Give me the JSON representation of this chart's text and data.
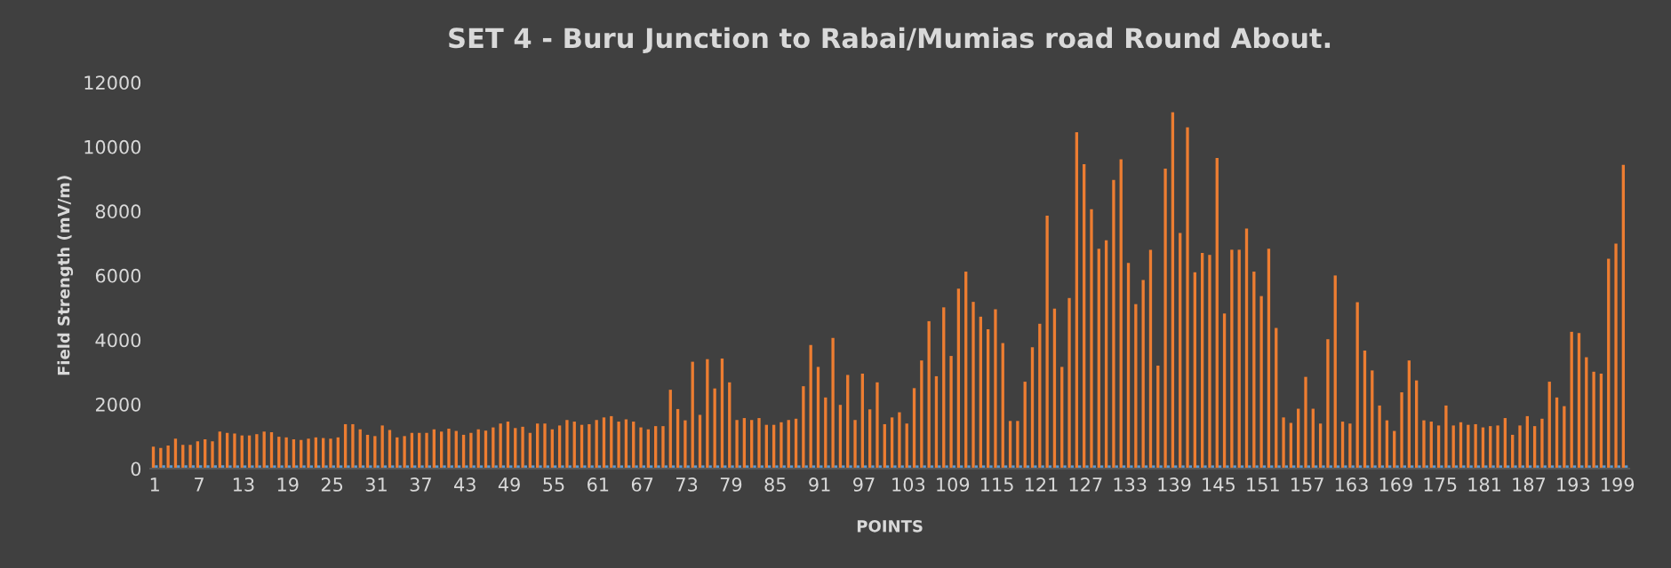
{
  "chart_data": {
    "type": "bar",
    "title": "SET 4 - Buru Junction to Rabai/Mumias road Round About.",
    "xlabel": "POINTS",
    "ylabel": "Field Strength (mV/m)",
    "categories": [
      "1",
      null,
      null,
      null,
      null,
      null,
      "7",
      null,
      null,
      null,
      null,
      null,
      "13",
      null,
      null,
      null,
      null,
      null,
      "19",
      null,
      null,
      null,
      null,
      null,
      "25",
      null,
      null,
      null,
      null,
      null,
      "31",
      null,
      null,
      null,
      null,
      null,
      "37",
      null,
      null,
      null,
      null,
      null,
      "43",
      null,
      null,
      null,
      null,
      null,
      "49",
      null,
      null,
      null,
      null,
      null,
      "55",
      null,
      null,
      null,
      null,
      null,
      "61",
      null,
      null,
      null,
      null,
      null,
      "67",
      null,
      null,
      null,
      null,
      null,
      "73",
      null,
      null,
      null,
      null,
      null,
      "79",
      null,
      null,
      null,
      null,
      null,
      "85",
      null,
      null,
      null,
      null,
      null,
      "91",
      null,
      null,
      null,
      null,
      null,
      "97",
      null,
      null,
      null,
      null,
      null,
      "103",
      null,
      null,
      null,
      null,
      null,
      "109",
      null,
      null,
      null,
      null,
      null,
      "115",
      null,
      null,
      null,
      null,
      null,
      "121",
      null,
      null,
      null,
      null,
      null,
      "127",
      null,
      null,
      null,
      null,
      null,
      "133",
      null,
      null,
      null,
      null,
      null,
      "139",
      null,
      null,
      null,
      null,
      null,
      "145",
      null,
      null,
      null,
      null,
      null,
      "151",
      null,
      null,
      null,
      null,
      null,
      "157",
      null,
      null,
      null,
      null,
      null,
      "163",
      null,
      null,
      null,
      null,
      null,
      "169",
      null,
      null,
      null,
      null,
      null,
      "175",
      null,
      null,
      null,
      null,
      null,
      "181",
      null,
      null,
      null,
      null,
      null,
      "187",
      null,
      null,
      null,
      null,
      null,
      "193",
      null,
      null,
      null,
      null,
      null,
      "199",
      null
    ],
    "series": [
      {
        "color": "#ed7d31",
        "values": [
          680,
          640,
          720,
          930,
          740,
          740,
          850,
          910,
          850,
          1150,
          1110,
          1090,
          1030,
          1030,
          1070,
          1150,
          1130,
          990,
          970,
          910,
          890,
          930,
          970,
          950,
          930,
          970,
          1380,
          1380,
          1220,
          1050,
          1010,
          1340,
          1200,
          970,
          1010,
          1110,
          1110,
          1110,
          1220,
          1150,
          1240,
          1170,
          1050,
          1110,
          1220,
          1180,
          1280,
          1400,
          1460,
          1260,
          1300,
          1110,
          1400,
          1400,
          1220,
          1340,
          1510,
          1460,
          1360,
          1380,
          1510,
          1590,
          1630,
          1460,
          1530,
          1460,
          1280,
          1220,
          1320,
          1320,
          2450,
          1850,
          1500,
          3320,
          1670,
          3400,
          2490,
          3420,
          2680,
          1510,
          1570,
          1510,
          1570,
          1360,
          1360,
          1440,
          1510,
          1550,
          2560,
          3840,
          3160,
          2210,
          4060,
          1980,
          2910,
          1510,
          2950,
          1840,
          2680,
          1380,
          1590,
          1750,
          1400,
          2500,
          3360,
          4580,
          2870,
          5010,
          3500,
          5590,
          6120,
          5180,
          4720,
          4330,
          4950,
          3900,
          1480,
          1480,
          2700,
          3770,
          4500,
          7860,
          4970,
          3160,
          5300,
          10450,
          9460,
          8060,
          6830,
          7090,
          8970,
          9610,
          6390,
          5110,
          5860,
          6800,
          3200,
          9320,
          11070,
          7320,
          10600,
          6100,
          6700,
          6640,
          9650,
          4820,
          6800,
          6800,
          7460,
          6120,
          5360,
          6830,
          4370,
          1590,
          1420,
          1860,
          2850,
          1860,
          1400,
          4020,
          6000,
          1460,
          1400,
          5170,
          3670,
          3050,
          1960,
          1500,
          1170,
          2370,
          3360,
          2740,
          1500,
          1460,
          1340,
          1960,
          1340,
          1440,
          1360,
          1380,
          1280,
          1320,
          1340,
          1570,
          1050,
          1340,
          1630,
          1320,
          1550,
          2700,
          2210,
          1940,
          4250,
          4210,
          3460,
          3010,
          2950,
          6520,
          6990,
          9440
        ]
      },
      {
        "color": "#5b9bd5",
        "values": [
          100,
          100,
          100,
          100,
          100,
          100,
          100,
          100,
          100,
          100,
          100,
          100,
          100,
          100,
          100,
          100,
          100,
          100,
          100,
          100,
          100,
          100,
          100,
          100,
          100,
          100,
          100,
          100,
          100,
          100,
          100,
          100,
          100,
          100,
          100,
          100,
          100,
          100,
          100,
          100,
          100,
          100,
          100,
          100,
          100,
          100,
          100,
          100,
          100,
          100,
          100,
          100,
          100,
          100,
          100,
          100,
          100,
          100,
          100,
          100,
          100,
          100,
          100,
          100,
          100,
          100,
          100,
          100,
          100,
          100,
          100,
          100,
          100,
          100,
          100,
          100,
          100,
          100,
          100,
          100,
          100,
          100,
          100,
          100,
          100,
          100,
          100,
          100,
          100,
          100,
          100,
          100,
          100,
          100,
          100,
          100,
          100,
          100,
          100,
          100,
          100,
          100,
          100,
          100,
          100,
          100,
          100,
          100,
          100,
          100,
          100,
          100,
          100,
          100,
          100,
          100,
          100,
          100,
          100,
          100,
          100,
          100,
          100,
          100,
          100,
          100,
          100,
          100,
          100,
          100,
          100,
          100,
          100,
          100,
          100,
          100,
          100,
          100,
          100,
          100,
          100,
          100,
          100,
          100,
          100,
          100,
          100,
          100,
          100,
          100,
          100,
          100,
          100,
          100,
          100,
          100,
          100,
          100,
          100,
          100,
          100,
          100,
          100,
          100,
          100,
          100,
          100,
          100,
          100,
          100,
          100,
          100,
          100,
          100,
          100,
          100,
          100,
          100,
          100,
          100,
          100,
          100,
          100,
          100,
          100,
          100,
          100,
          100,
          100,
          100,
          100,
          100,
          100,
          100,
          100,
          100,
          100,
          100,
          100,
          100
        ]
      }
    ],
    "ylim": [
      0,
      12000
    ],
    "yticks": [
      0,
      2000,
      4000,
      6000,
      8000,
      10000,
      12000
    ],
    "grid": false
  }
}
